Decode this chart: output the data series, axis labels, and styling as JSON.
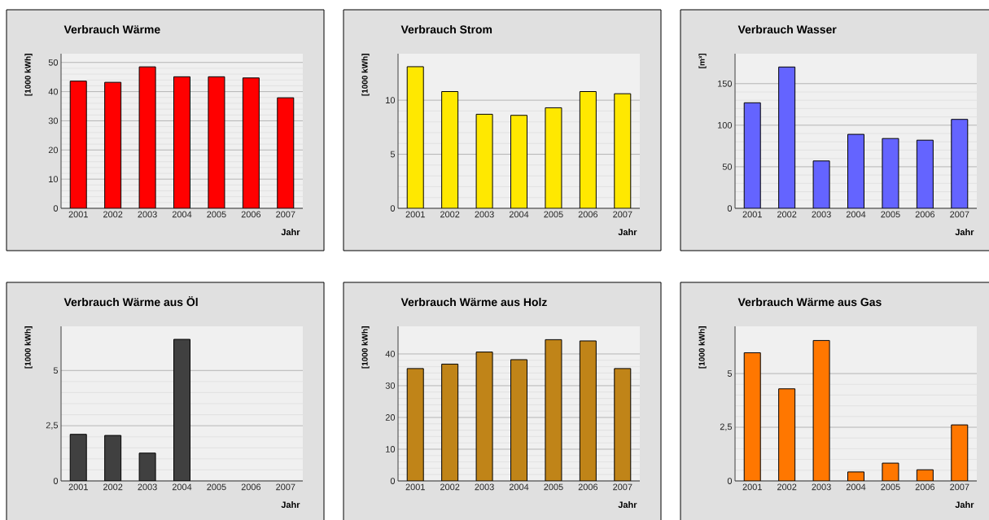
{
  "chart_data": [
    {
      "type": "bar",
      "title": "Verbrauch Wärme",
      "ylabel": "[1000 kWh]",
      "xlabel": "Jahr",
      "categories": [
        "2001",
        "2002",
        "2003",
        "2004",
        "2005",
        "2006",
        "2007"
      ],
      "values": [
        43.6,
        43.2,
        48.5,
        45.1,
        45.1,
        44.7,
        37.9
      ],
      "color": "#ff0000",
      "ylim": [
        0,
        53
      ],
      "yticks": [
        0,
        10,
        20,
        30,
        40,
        50
      ],
      "grid": "y"
    },
    {
      "type": "bar",
      "title": "Verbrauch Strom",
      "ylabel": "[1000 kWh]",
      "xlabel": "Jahr",
      "categories": [
        "2001",
        "2002",
        "2003",
        "2004",
        "2005",
        "2006",
        "2007"
      ],
      "values": [
        13.1,
        10.8,
        8.7,
        8.6,
        9.3,
        10.8,
        10.6
      ],
      "color": "#ffe800",
      "ylim": [
        0,
        14.3
      ],
      "yticks": [
        0,
        5,
        10
      ],
      "grid": "y"
    },
    {
      "type": "bar",
      "title": "Verbrauch Wasser",
      "ylabel": "[m³]",
      "xlabel": "Jahr",
      "categories": [
        "2001",
        "2002",
        "2003",
        "2004",
        "2005",
        "2006",
        "2007"
      ],
      "values": [
        127,
        170,
        57,
        89,
        84,
        82,
        107
      ],
      "color": "#6464ff",
      "ylim": [
        0,
        186
      ],
      "yticks": [
        0,
        50,
        100,
        150
      ],
      "grid": "y"
    },
    {
      "type": "bar",
      "title": "Verbrauch Wärme aus Öl",
      "ylabel": "[1000 kWh]",
      "xlabel": "Jahr",
      "categories": [
        "2001",
        "2002",
        "2003",
        "2004",
        "2005",
        "2006",
        "2007"
      ],
      "values": [
        2.11,
        2.06,
        1.26,
        6.41,
        null,
        null,
        null
      ],
      "color": "#404040",
      "ylim": [
        0,
        7
      ],
      "yticks": [
        0,
        {
          "value": 2.5,
          "label": "2,5"
        },
        5
      ],
      "grid": "y"
    },
    {
      "type": "bar",
      "title": "Verbrauch Wärme aus Holz",
      "ylabel": "[1000 kWh]",
      "xlabel": "Jahr",
      "categories": [
        "2001",
        "2002",
        "2003",
        "2004",
        "2005",
        "2006",
        "2007"
      ],
      "values": [
        35.4,
        36.8,
        40.6,
        38.2,
        44.5,
        44.1,
        35.4
      ],
      "color": "#c08418",
      "ylim": [
        0,
        48.7
      ],
      "yticks": [
        0,
        10,
        20,
        30,
        40
      ],
      "grid": "y"
    },
    {
      "type": "bar",
      "title": "Verbrauch Wärme aus Gas",
      "ylabel": "[1000 kWh]",
      "xlabel": "Jahr",
      "categories": [
        "2001",
        "2002",
        "2003",
        "2004",
        "2005",
        "2006",
        "2007"
      ],
      "values": [
        5.97,
        4.29,
        6.54,
        0.42,
        0.83,
        0.52,
        2.61
      ],
      "color": "#ff7700",
      "ylim": [
        0,
        7.2
      ],
      "yticks": [
        0,
        {
          "value": 2.5,
          "label": "2,5"
        },
        5
      ],
      "grid": "y"
    }
  ]
}
